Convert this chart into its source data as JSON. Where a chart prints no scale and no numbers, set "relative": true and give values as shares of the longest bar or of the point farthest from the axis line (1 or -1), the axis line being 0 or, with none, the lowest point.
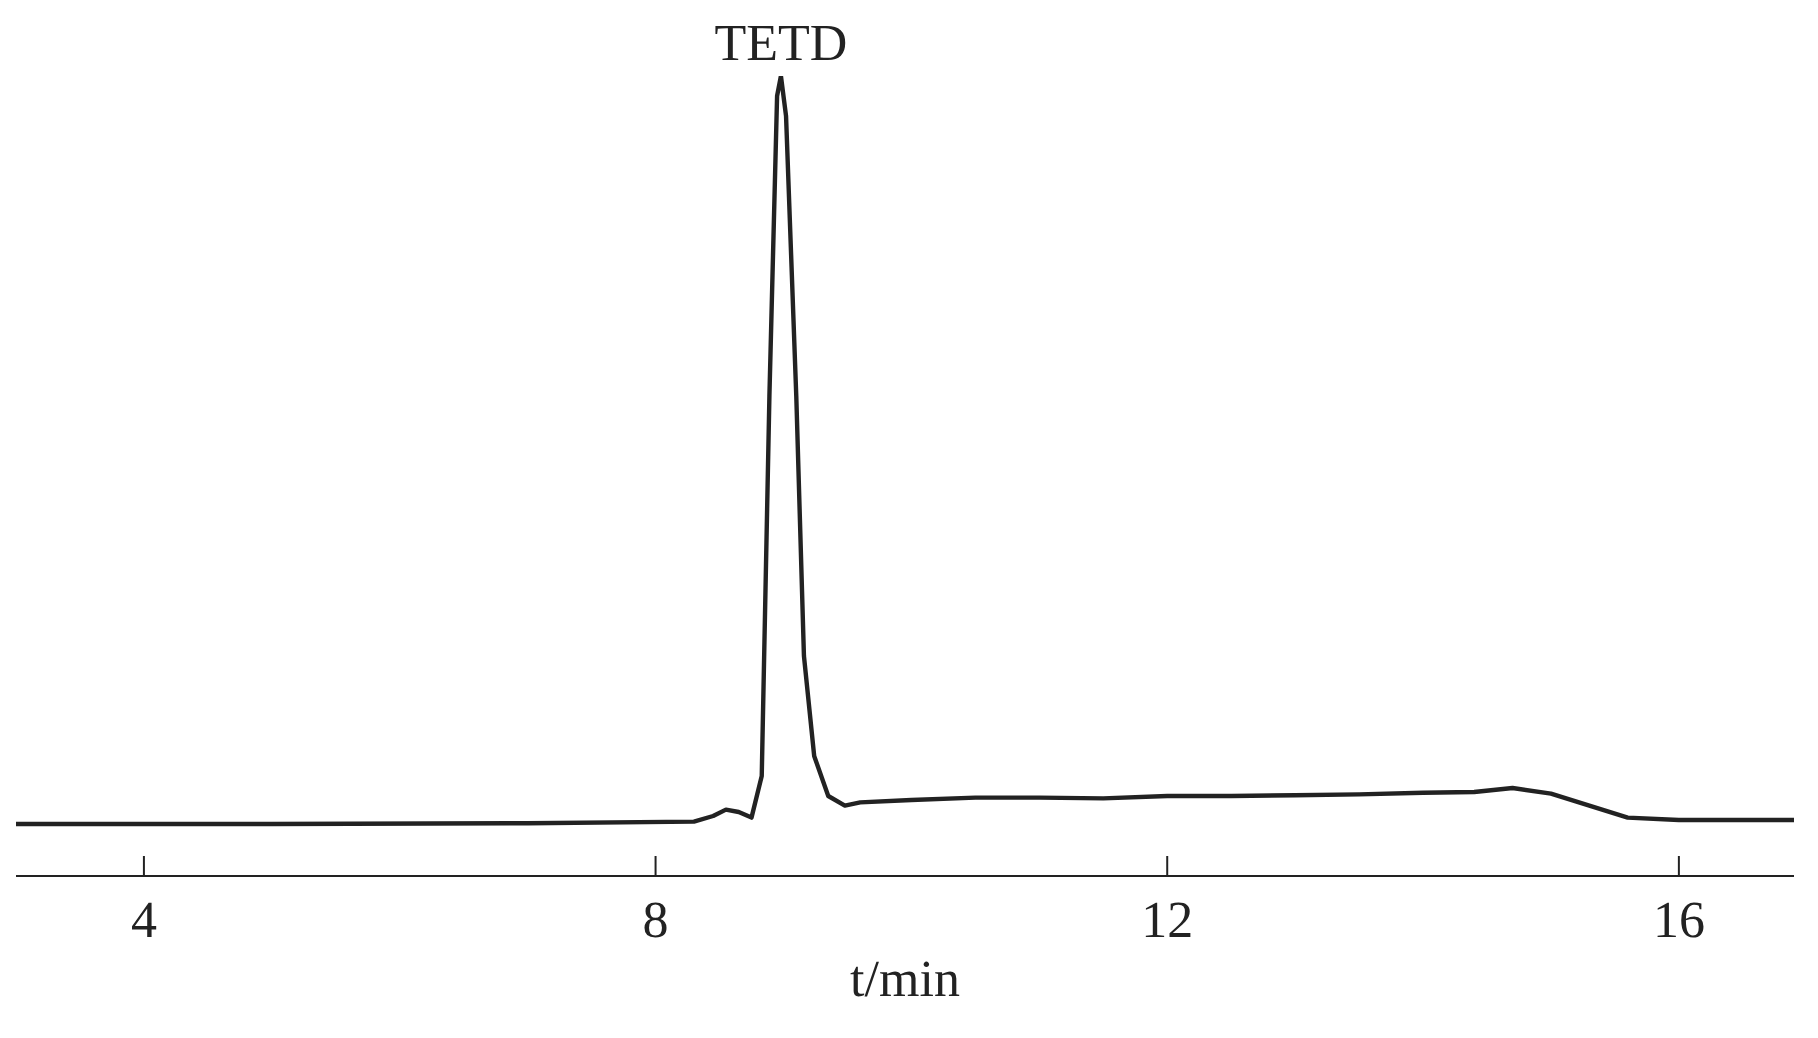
{
  "chart_data": {
    "type": "line",
    "relative": true,
    "xlabel": "t/min",
    "xlim": [
      3,
      16.9
    ],
    "xticks": [
      4,
      8,
      12,
      16
    ],
    "grid": false,
    "legend": false,
    "marker": "none",
    "line_style": "solid",
    "annotations": [
      {
        "text": "TETD",
        "x": 8.98,
        "y": 1
      }
    ],
    "series": [
      {
        "color": "#222222",
        "x": [
          3,
          5,
          7,
          8.3,
          8.45,
          8.55,
          8.65,
          8.75,
          8.83,
          8.89,
          8.95,
          8.98,
          9.02,
          9.1,
          9.16,
          9.24,
          9.35,
          9.48,
          9.6,
          10,
          10.5,
          11,
          11.5,
          12,
          12.5,
          13,
          13.5,
          14,
          14.4,
          14.7,
          15,
          15.3,
          15.6,
          16,
          16.9
        ],
        "values": [
          0.065,
          0.065,
          0.066,
          0.068,
          0.075,
          0.083,
          0.08,
          0.073,
          0.125,
          0.6,
          0.975,
          1,
          0.95,
          0.6,
          0.275,
          0.15,
          0.1,
          0.088,
          0.092,
          0.095,
          0.098,
          0.098,
          0.097,
          0.1,
          0.1,
          0.101,
          0.102,
          0.104,
          0.105,
          0.11,
          0.103,
          0.088,
          0.073,
          0.07,
          0.07
        ]
      }
    ]
  }
}
